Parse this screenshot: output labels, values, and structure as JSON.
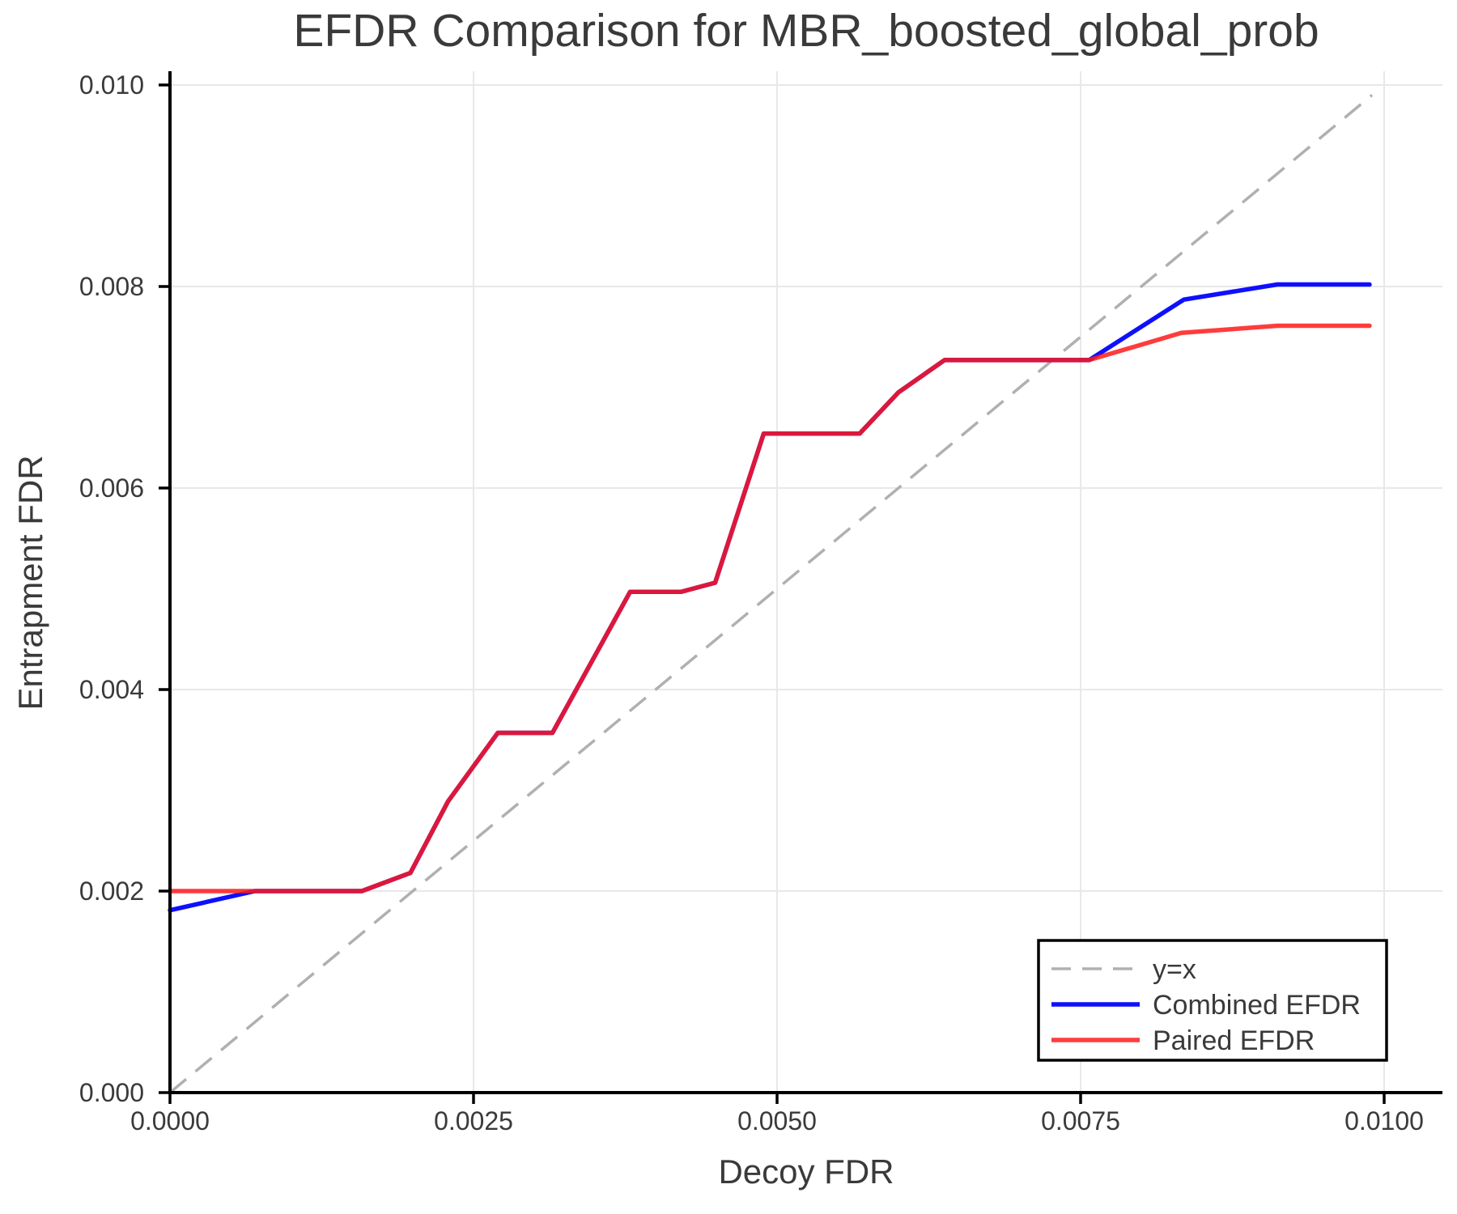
{
  "chart_data": {
    "type": "line",
    "title": "EFDR Comparison for MBR_boosted_global_prob",
    "xlabel": "Decoy FDR",
    "ylabel": "Entrapment FDR",
    "xlim": [
      0.0,
      0.01047
    ],
    "ylim": [
      0.0,
      0.01012
    ],
    "grid": true,
    "legend_position": "lower right",
    "x_ticks": [
      0.0,
      0.0025,
      0.005,
      0.0075,
      0.01
    ],
    "x_tick_labels": [
      "0.0000",
      "0.0025",
      "0.0050",
      "0.0075",
      "0.0100"
    ],
    "y_ticks": [
      0.0,
      0.002,
      0.004,
      0.006,
      0.008,
      0.01
    ],
    "y_tick_labels": [
      "0.000",
      "0.002",
      "0.004",
      "0.006",
      "0.008",
      "0.010"
    ],
    "colors": {
      "background": "#ffffff",
      "grid": "#e8e8e8",
      "spine": "#000000",
      "text": "#3a3a3a"
    },
    "series": [
      {
        "name": "y=x",
        "style": "dashed",
        "color": "#b0b0b0",
        "points": [
          [
            0.0,
            0.0
          ],
          [
            0.0099,
            0.0099
          ]
        ]
      },
      {
        "name": "Combined EFDR",
        "style": "solid",
        "color": "#0f0fff",
        "points": [
          [
            0.0,
            0.00181
          ],
          [
            0.0007,
            0.002
          ],
          [
            0.00158,
            0.002
          ],
          [
            0.00198,
            0.00218
          ],
          [
            0.00229,
            0.00289
          ],
          [
            0.0027,
            0.00357
          ],
          [
            0.00315,
            0.00357
          ],
          [
            0.00379,
            0.00497
          ],
          [
            0.00421,
            0.00497
          ],
          [
            0.00449,
            0.00506
          ],
          [
            0.00489,
            0.00654
          ],
          [
            0.00568,
            0.00654
          ],
          [
            0.006,
            0.00695
          ],
          [
            0.00638,
            0.00727
          ],
          [
            0.00757,
            0.00727
          ],
          [
            0.00835,
            0.00787
          ],
          [
            0.00912,
            0.00802
          ],
          [
            0.00988,
            0.00802
          ]
        ]
      },
      {
        "name": "Paired EFDR",
        "style": "solid",
        "color": "#ff1a1a",
        "points": [
          [
            0.0,
            0.002
          ],
          [
            0.00158,
            0.002
          ],
          [
            0.00198,
            0.00218
          ],
          [
            0.00229,
            0.00289
          ],
          [
            0.0027,
            0.00357
          ],
          [
            0.00315,
            0.00357
          ],
          [
            0.00379,
            0.00497
          ],
          [
            0.00421,
            0.00497
          ],
          [
            0.00449,
            0.00506
          ],
          [
            0.00489,
            0.00654
          ],
          [
            0.00568,
            0.00654
          ],
          [
            0.006,
            0.00695
          ],
          [
            0.00638,
            0.00727
          ],
          [
            0.00757,
            0.00727
          ],
          [
            0.00833,
            0.00754
          ],
          [
            0.00912,
            0.00761
          ],
          [
            0.00988,
            0.00761
          ]
        ]
      }
    ]
  }
}
